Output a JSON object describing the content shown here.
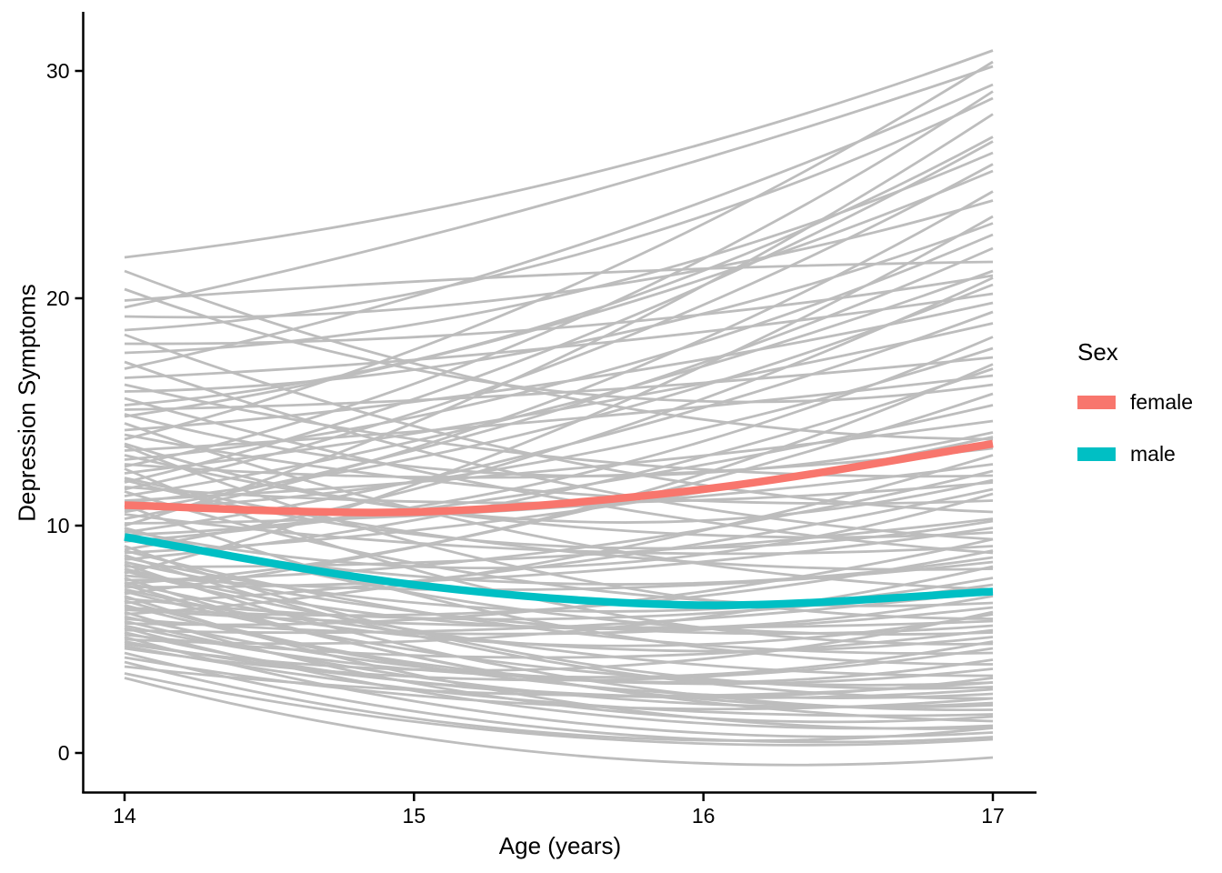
{
  "chart_data": {
    "type": "line",
    "title": "",
    "xlabel": "Age (years)",
    "ylabel": "Depression Symptoms",
    "x_ticks": [
      14,
      15,
      16,
      17
    ],
    "y_ticks": [
      0,
      10,
      20,
      30
    ],
    "xlim": [
      13.85,
      17.15
    ],
    "ylim": [
      -1.8,
      32.6
    ],
    "grid": false,
    "legend": {
      "title": "Sex",
      "position": "right",
      "entries": [
        {
          "label": "female",
          "color": "#F8766D"
        },
        {
          "label": "male",
          "color": "#00BFC4"
        }
      ]
    },
    "x": [
      14,
      15,
      16,
      17
    ],
    "series": [
      {
        "name": "female",
        "color": "#F8766D",
        "width": 8.5,
        "values": [
          10.9,
          10.6,
          11.6,
          13.6
        ]
      },
      {
        "name": "male",
        "color": "#00BFC4",
        "width": 8.5,
        "values": [
          9.5,
          7.4,
          6.5,
          7.1
        ]
      }
    ],
    "individual_trajectories": {
      "description": "one gray quadratic trajectory per subject",
      "color": "#BDBDBD",
      "width": 2.8,
      "format": [
        "value_at_age_14",
        "value_at_age_17",
        "midpoint_bow"
      ],
      "lines": [
        [
          21.8,
          30.9,
          -1.2
        ],
        [
          21.2,
          13.8,
          -1.8
        ],
        [
          19.6,
          30.2,
          -0.6
        ],
        [
          19.2,
          24.3,
          -1.5
        ],
        [
          18.6,
          28.8,
          -2.0
        ],
        [
          18.4,
          10.6,
          -1.6
        ],
        [
          18.0,
          21.0,
          -0.8
        ],
        [
          17.6,
          26.4,
          -1.9
        ],
        [
          17.2,
          9.4,
          -1.4
        ],
        [
          16.9,
          29.4,
          -1.1
        ],
        [
          16.5,
          20.2,
          -0.5
        ],
        [
          16.2,
          12.2,
          -1.2
        ],
        [
          15.9,
          23.3,
          -1.7
        ],
        [
          15.6,
          8.8,
          -1.0
        ],
        [
          15.3,
          27.1,
          -2.2
        ],
        [
          15.1,
          17.4,
          -0.4
        ],
        [
          20.4,
          16.2,
          -2.4
        ],
        [
          19.9,
          21.6,
          0.3
        ],
        [
          14.8,
          25.6,
          -1.3
        ],
        [
          14.5,
          7.2,
          -1.5
        ],
        [
          14.2,
          19.8,
          -0.7
        ],
        [
          14.0,
          11.1,
          -1.1
        ],
        [
          13.8,
          30.4,
          -1.8
        ],
        [
          13.5,
          5.9,
          -1.9
        ],
        [
          13.3,
          16.6,
          -0.3
        ],
        [
          13.1,
          9.7,
          -1.4
        ],
        [
          12.9,
          22.8,
          -1.6
        ],
        [
          12.7,
          13.4,
          -0.9
        ],
        [
          12.5,
          4.8,
          -2.1
        ],
        [
          12.3,
          18.9,
          -0.5
        ],
        [
          12.1,
          8.1,
          -1.2
        ],
        [
          11.9,
          26.9,
          -1.5
        ],
        [
          11.7,
          11.9,
          -0.8
        ],
        [
          11.5,
          6.6,
          -1.7
        ],
        [
          11.3,
          21.2,
          -1.0
        ],
        [
          11.1,
          14.6,
          -0.4
        ],
        [
          10.9,
          3.9,
          -1.8
        ],
        [
          10.7,
          17.8,
          -1.3
        ],
        [
          10.5,
          9.1,
          -0.9
        ],
        [
          10.3,
          24.7,
          -1.9
        ],
        [
          10.1,
          12.7,
          -0.6
        ],
        [
          9.9,
          5.3,
          -1.5
        ],
        [
          9.7,
          19.4,
          -1.1
        ],
        [
          9.5,
          8.6,
          -1.6
        ],
        [
          9.3,
          15.3,
          -0.7
        ],
        [
          9.1,
          2.9,
          -1.9
        ],
        [
          14.9,
          14.1,
          -2.3
        ],
        [
          13.6,
          12.0,
          -2.6
        ],
        [
          12.0,
          10.2,
          -2.0
        ],
        [
          11.0,
          20.6,
          -1.4
        ],
        [
          10.0,
          28.1,
          -1.7
        ],
        [
          9.8,
          11.4,
          -2.4
        ],
        [
          8.9,
          4.4,
          -1.3
        ],
        [
          8.8,
          13.9,
          -0.8
        ],
        [
          8.7,
          2.4,
          -1.6
        ],
        [
          8.6,
          7.7,
          -1.9
        ],
        [
          8.5,
          16.9,
          -1.2
        ],
        [
          8.4,
          5.6,
          -1.4
        ],
        [
          8.3,
          1.9,
          -1.7
        ],
        [
          8.2,
          10.3,
          -0.6
        ],
        [
          8.1,
          6.9,
          -2.0
        ],
        [
          8.0,
          3.4,
          -1.2
        ],
        [
          7.9,
          23.6,
          -1.5
        ],
        [
          7.8,
          8.4,
          -0.9
        ],
        [
          7.7,
          2.1,
          -1.8
        ],
        [
          7.6,
          12.4,
          -1.1
        ],
        [
          7.5,
          5.1,
          -1.6
        ],
        [
          7.4,
          1.4,
          -1.3
        ],
        [
          7.3,
          9.9,
          -0.7
        ],
        [
          7.2,
          6.1,
          -1.9
        ],
        [
          7.1,
          3.1,
          -1.4
        ],
        [
          7.0,
          15.8,
          -1.0
        ],
        [
          6.9,
          1.1,
          -1.7
        ],
        [
          6.8,
          7.4,
          -1.2
        ],
        [
          6.7,
          4.1,
          -2.1
        ],
        [
          6.6,
          11.6,
          -0.8
        ],
        [
          6.5,
          2.6,
          -1.5
        ],
        [
          6.4,
          8.9,
          -1.3
        ],
        [
          6.3,
          5.8,
          -0.5
        ],
        [
          6.2,
          1.6,
          -1.8
        ],
        [
          6.1,
          13.1,
          -1.1
        ],
        [
          6.0,
          3.7,
          -1.6
        ],
        [
          5.9,
          6.4,
          -0.9
        ],
        [
          5.8,
          2.2,
          -1.4
        ],
        [
          5.7,
          9.4,
          -1.2
        ],
        [
          5.6,
          4.9,
          -1.9
        ],
        [
          5.5,
          1.2,
          -1.5
        ],
        [
          5.4,
          7.1,
          -0.7
        ],
        [
          5.3,
          3.3,
          -1.7
        ],
        [
          5.2,
          5.4,
          -1.1
        ],
        [
          5.1,
          0.9,
          -1.6
        ],
        [
          5.0,
          8.2,
          -1.3
        ],
        [
          4.9,
          2.8,
          -1.2
        ],
        [
          4.8,
          6.2,
          -1.8
        ],
        [
          4.7,
          1.7,
          -1.0
        ],
        [
          4.6,
          4.6,
          -1.4
        ],
        [
          4.4,
          0.7,
          -1.5
        ],
        [
          4.2,
          2.4,
          -1.2
        ],
        [
          4.0,
          1.1,
          -1.7
        ],
        [
          3.8,
          3.1,
          -0.9
        ],
        [
          3.5,
          0.6,
          -1.3
        ],
        [
          3.3,
          -0.2,
          -1.6
        ],
        [
          12.6,
          29.1,
          -2.1
        ],
        [
          11.6,
          25.9,
          -1.6
        ],
        [
          10.6,
          22.2,
          -1.3
        ],
        [
          9.6,
          18.3,
          -1.9
        ],
        [
          8.95,
          20.9,
          -1.5
        ],
        [
          7.45,
          17.1,
          -1.8
        ]
      ]
    }
  }
}
